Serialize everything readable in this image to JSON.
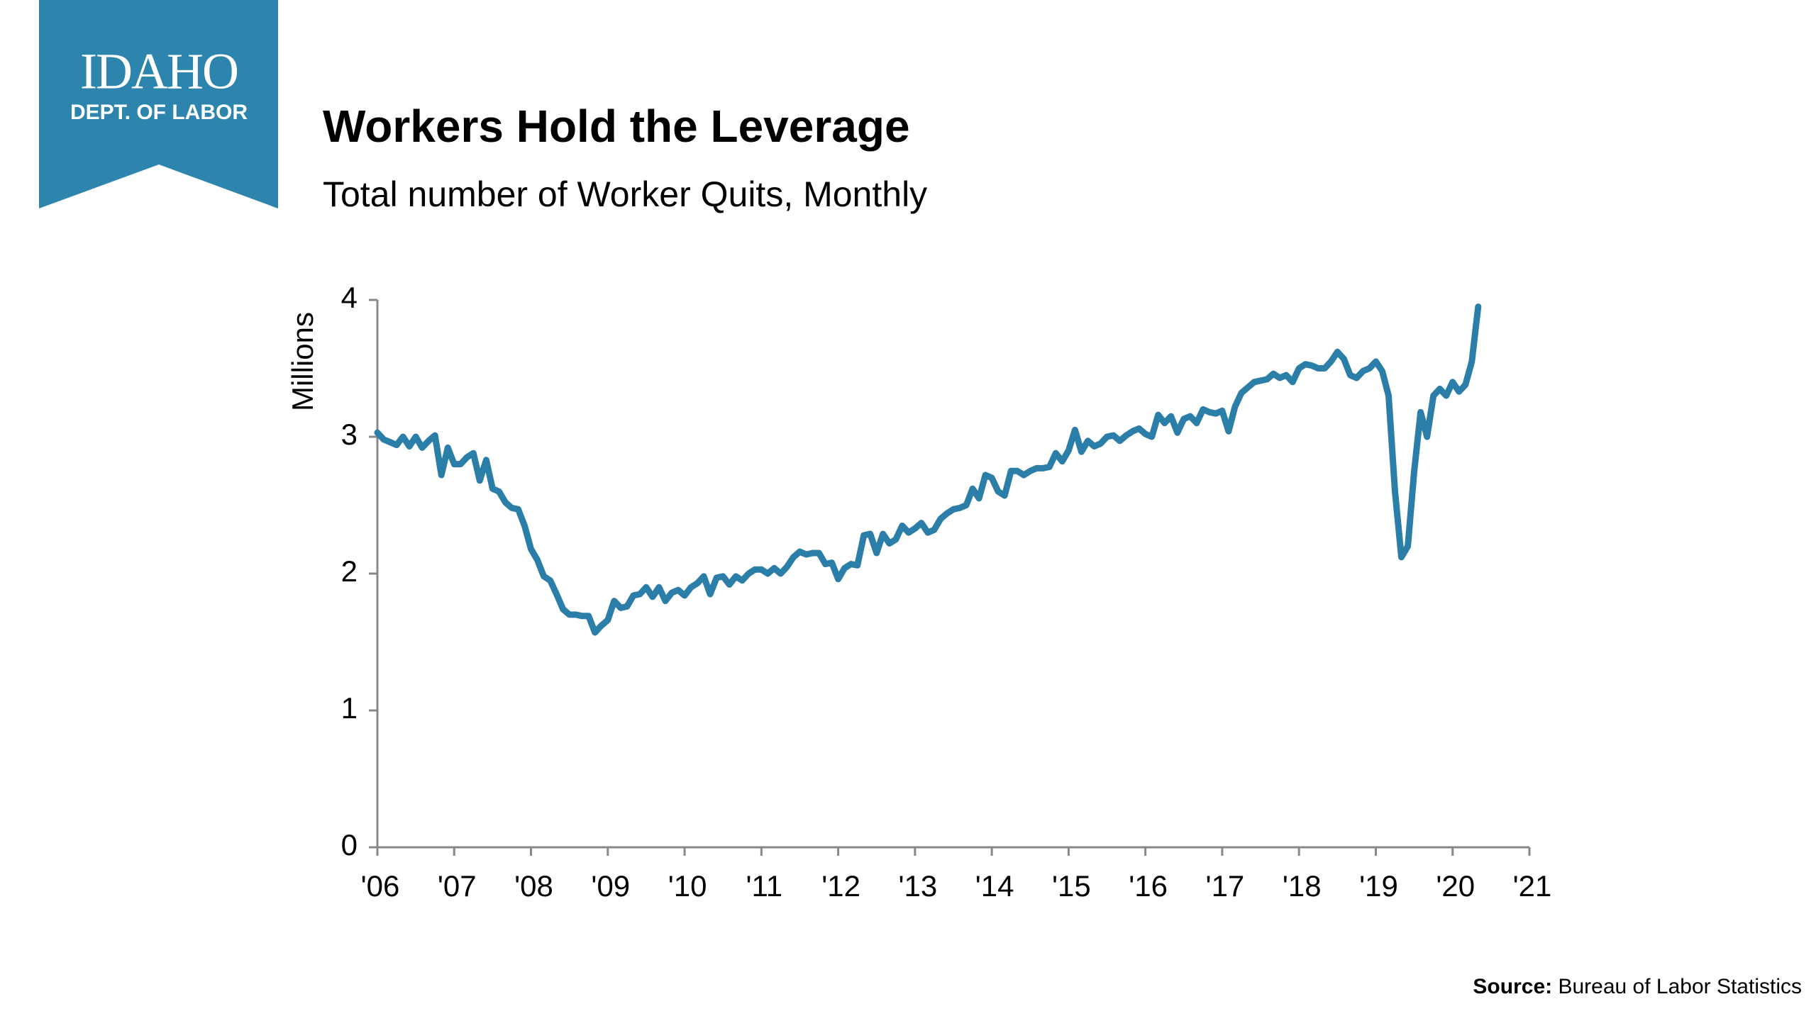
{
  "logo": {
    "name": "IDAHO",
    "sub": "DEPT. OF LABOR"
  },
  "chart_data": {
    "type": "line",
    "title": "Workers Hold the Leverage",
    "subtitle": "Total number of Worker Quits, Monthly",
    "y_label": "Millions",
    "source_label": "Source:",
    "source": "Bureau of Labor Statistics",
    "xlim": [
      2006,
      2021
    ],
    "xticks": [
      {
        "value": 2006,
        "label": "'06"
      },
      {
        "value": 2007,
        "label": "'07"
      },
      {
        "value": 2008,
        "label": "'08"
      },
      {
        "value": 2009,
        "label": "'09"
      },
      {
        "value": 2010,
        "label": "'10"
      },
      {
        "value": 2011,
        "label": "'11"
      },
      {
        "value": 2012,
        "label": "'12"
      },
      {
        "value": 2013,
        "label": "'13"
      },
      {
        "value": 2014,
        "label": "'14"
      },
      {
        "value": 2015,
        "label": "'15"
      },
      {
        "value": 2016,
        "label": "'16"
      },
      {
        "value": 2017,
        "label": "'17"
      },
      {
        "value": 2018,
        "label": "'18"
      },
      {
        "value": 2019,
        "label": "'19"
      },
      {
        "value": 2020,
        "label": "'20"
      },
      {
        "value": 2021,
        "label": "'21"
      }
    ],
    "ylim": [
      0,
      4
    ],
    "yticks": [
      0,
      1,
      2,
      3,
      4
    ],
    "x": [
      2006.0,
      2006.083,
      2006.167,
      2006.25,
      2006.333,
      2006.417,
      2006.5,
      2006.583,
      2006.667,
      2006.75,
      2006.833,
      2006.917,
      2007.0,
      2007.083,
      2007.167,
      2007.25,
      2007.333,
      2007.417,
      2007.5,
      2007.583,
      2007.667,
      2007.75,
      2007.833,
      2007.917,
      2008.0,
      2008.083,
      2008.167,
      2008.25,
      2008.333,
      2008.417,
      2008.5,
      2008.583,
      2008.667,
      2008.75,
      2008.833,
      2008.917,
      2009.0,
      2009.083,
      2009.167,
      2009.25,
      2009.333,
      2009.417,
      2009.5,
      2009.583,
      2009.667,
      2009.75,
      2009.833,
      2009.917,
      2010.0,
      2010.083,
      2010.167,
      2010.25,
      2010.333,
      2010.417,
      2010.5,
      2010.583,
      2010.667,
      2010.75,
      2010.833,
      2010.917,
      2011.0,
      2011.083,
      2011.167,
      2011.25,
      2011.333,
      2011.417,
      2011.5,
      2011.583,
      2011.667,
      2011.75,
      2011.833,
      2011.917,
      2012.0,
      2012.083,
      2012.167,
      2012.25,
      2012.333,
      2012.417,
      2012.5,
      2012.583,
      2012.667,
      2012.75,
      2012.833,
      2012.917,
      2013.0,
      2013.083,
      2013.167,
      2013.25,
      2013.333,
      2013.417,
      2013.5,
      2013.583,
      2013.667,
      2013.75,
      2013.833,
      2013.917,
      2014.0,
      2014.083,
      2014.167,
      2014.25,
      2014.333,
      2014.417,
      2014.5,
      2014.583,
      2014.667,
      2014.75,
      2014.833,
      2014.917,
      2015.0,
      2015.083,
      2015.167,
      2015.25,
      2015.333,
      2015.417,
      2015.5,
      2015.583,
      2015.667,
      2015.75,
      2015.833,
      2015.917,
      2016.0,
      2016.083,
      2016.167,
      2016.25,
      2016.333,
      2016.417,
      2016.5,
      2016.583,
      2016.667,
      2016.75,
      2016.833,
      2016.917,
      2017.0,
      2017.083,
      2017.167,
      2017.25,
      2017.333,
      2017.417,
      2017.5,
      2017.583,
      2017.667,
      2017.75,
      2017.833,
      2017.917,
      2018.0,
      2018.083,
      2018.167,
      2018.25,
      2018.333,
      2018.417,
      2018.5,
      2018.583,
      2018.667,
      2018.75,
      2018.833,
      2018.917,
      2019.0,
      2019.083,
      2019.167,
      2019.25,
      2019.333,
      2019.417,
      2019.5,
      2019.583,
      2019.667,
      2019.75,
      2019.833,
      2019.917,
      2020.0,
      2020.083,
      2020.167,
      2020.25,
      2020.333
    ],
    "series": [
      {
        "color": "#2b7ea8",
        "values": [
          3.03,
          2.98,
          2.96,
          2.94,
          3.0,
          2.93,
          3.0,
          2.92,
          2.97,
          3.01,
          2.72,
          2.92,
          2.8,
          2.8,
          2.85,
          2.88,
          2.68,
          2.83,
          2.62,
          2.6,
          2.52,
          2.48,
          2.47,
          2.35,
          2.18,
          2.1,
          1.98,
          1.95,
          1.85,
          1.74,
          1.7,
          1.7,
          1.69,
          1.69,
          1.57,
          1.62,
          1.66,
          1.8,
          1.75,
          1.76,
          1.84,
          1.85,
          1.9,
          1.83,
          1.9,
          1.8,
          1.86,
          1.88,
          1.84,
          1.9,
          1.93,
          1.98,
          1.85,
          1.97,
          1.98,
          1.92,
          1.98,
          1.95,
          2.0,
          2.03,
          2.03,
          2.0,
          2.04,
          2.0,
          2.05,
          2.12,
          2.16,
          2.14,
          2.15,
          2.15,
          2.07,
          2.08,
          1.96,
          2.04,
          2.07,
          2.06,
          2.28,
          2.29,
          2.15,
          2.29,
          2.22,
          2.25,
          2.35,
          2.3,
          2.33,
          2.37,
          2.3,
          2.32,
          2.4,
          2.44,
          2.47,
          2.48,
          2.5,
          2.62,
          2.55,
          2.72,
          2.7,
          2.6,
          2.57,
          2.75,
          2.75,
          2.72,
          2.75,
          2.77,
          2.77,
          2.78,
          2.88,
          2.82,
          2.9,
          3.05,
          2.89,
          2.97,
          2.93,
          2.95,
          3.0,
          3.01,
          2.97,
          3.01,
          3.04,
          3.06,
          3.02,
          3.0,
          3.16,
          3.1,
          3.15,
          3.03,
          3.13,
          3.15,
          3.1,
          3.2,
          3.18,
          3.17,
          3.19,
          3.04,
          3.22,
          3.32,
          3.36,
          3.4,
          3.41,
          3.42,
          3.46,
          3.43,
          3.45,
          3.4,
          3.5,
          3.53,
          3.52,
          3.5,
          3.5,
          3.55,
          3.62,
          3.57,
          3.45,
          3.43,
          3.48,
          3.5,
          3.55,
          3.48,
          3.3,
          2.6,
          2.12,
          2.2,
          2.75,
          3.18,
          3.0,
          3.3,
          3.35,
          3.3,
          3.4,
          3.33,
          3.38,
          3.55,
          3.95
        ]
      }
    ]
  }
}
